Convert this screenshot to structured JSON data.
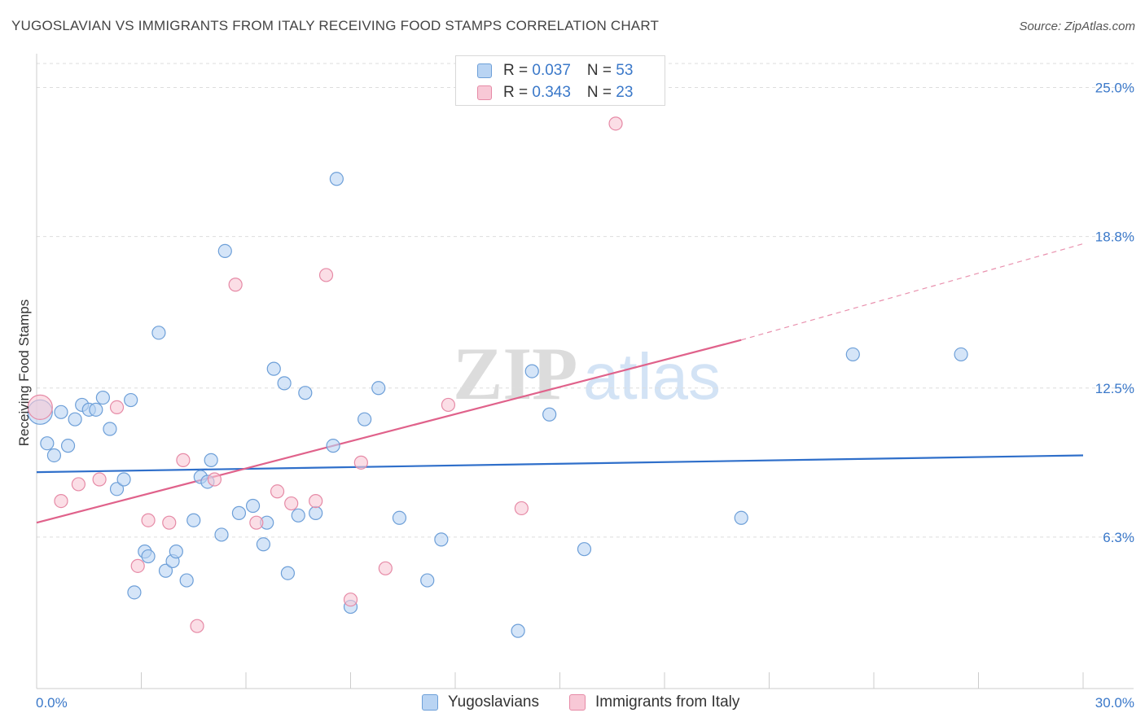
{
  "title": "YUGOSLAVIAN VS IMMIGRANTS FROM ITALY RECEIVING FOOD STAMPS CORRELATION CHART",
  "source": "Source: ZipAtlas.com",
  "watermark": {
    "part1": "ZIP",
    "part2": "atlas"
  },
  "legend": {
    "rows": [
      {
        "r_label": "R = ",
        "r_value": "0.037",
        "n_label": "N = ",
        "n_value": "53"
      },
      {
        "r_label": "R = ",
        "r_value": "0.343",
        "n_label": "N = ",
        "n_value": "23"
      }
    ]
  },
  "colors": {
    "blue_fill": "#b9d4f3",
    "blue_stroke": "#6d9fd8",
    "blue_line": "#2f6fca",
    "pink_fill": "#f8c8d6",
    "pink_stroke": "#e68aa6",
    "pink_line": "#e0628b",
    "tick_label": "#3a78c9",
    "grid": "#dddddd"
  },
  "chart_data": {
    "type": "scatter",
    "title": "YUGOSLAVIAN VS IMMIGRANTS FROM ITALY RECEIVING FOOD STAMPS CORRELATION CHART",
    "xlabel": "",
    "ylabel": "Receiving Food Stamps",
    "xlim": [
      0,
      30
    ],
    "ylim": [
      0,
      26.0
    ],
    "x_tick_labels": [
      "0.0%",
      "30.0%"
    ],
    "y_ticks": [
      6.3,
      12.5,
      18.8,
      25.0
    ],
    "y_tick_labels": [
      "6.3%",
      "12.5%",
      "18.8%",
      "25.0%"
    ],
    "grid": true,
    "series": [
      {
        "name": "Yugoslavians",
        "points": [
          [
            0.1,
            11.5
          ],
          [
            0.3,
            10.2
          ],
          [
            0.5,
            9.7
          ],
          [
            0.7,
            11.5
          ],
          [
            0.9,
            10.1
          ],
          [
            1.1,
            11.2
          ],
          [
            1.3,
            11.8
          ],
          [
            1.5,
            11.6
          ],
          [
            1.7,
            11.6
          ],
          [
            1.9,
            12.1
          ],
          [
            2.1,
            10.8
          ],
          [
            2.3,
            8.3
          ],
          [
            2.5,
            8.7
          ],
          [
            2.7,
            12.0
          ],
          [
            2.8,
            4.0
          ],
          [
            3.1,
            5.7
          ],
          [
            3.2,
            5.5
          ],
          [
            3.5,
            14.8
          ],
          [
            3.7,
            4.9
          ],
          [
            3.9,
            5.3
          ],
          [
            4.0,
            5.7
          ],
          [
            4.3,
            4.5
          ],
          [
            4.5,
            7.0
          ],
          [
            4.7,
            8.8
          ],
          [
            4.9,
            8.6
          ],
          [
            5.0,
            9.5
          ],
          [
            5.3,
            6.4
          ],
          [
            5.4,
            18.2
          ],
          [
            5.8,
            7.3
          ],
          [
            6.2,
            7.6
          ],
          [
            6.5,
            6.0
          ],
          [
            6.6,
            6.9
          ],
          [
            6.8,
            13.3
          ],
          [
            7.1,
            12.7
          ],
          [
            7.2,
            4.8
          ],
          [
            7.5,
            7.2
          ],
          [
            7.7,
            12.3
          ],
          [
            8.0,
            7.3
          ],
          [
            8.5,
            10.1
          ],
          [
            8.6,
            21.2
          ],
          [
            9.0,
            3.4
          ],
          [
            9.4,
            11.2
          ],
          [
            9.8,
            12.5
          ],
          [
            10.4,
            7.1
          ],
          [
            11.2,
            4.5
          ],
          [
            11.6,
            6.2
          ],
          [
            13.8,
            2.4
          ],
          [
            14.2,
            13.2
          ],
          [
            14.7,
            11.4
          ],
          [
            15.7,
            5.8
          ],
          [
            20.2,
            7.1
          ],
          [
            23.4,
            13.9
          ],
          [
            26.5,
            13.9
          ]
        ]
      },
      {
        "name": "Immigrants from Italy",
        "points": [
          [
            0.1,
            11.7
          ],
          [
            0.7,
            7.8
          ],
          [
            1.2,
            8.5
          ],
          [
            1.8,
            8.7
          ],
          [
            2.3,
            11.7
          ],
          [
            2.9,
            5.1
          ],
          [
            3.2,
            7.0
          ],
          [
            3.8,
            6.9
          ],
          [
            4.2,
            9.5
          ],
          [
            4.6,
            2.6
          ],
          [
            5.1,
            8.7
          ],
          [
            5.7,
            16.8
          ],
          [
            6.3,
            6.9
          ],
          [
            6.9,
            8.2
          ],
          [
            7.3,
            7.7
          ],
          [
            8.0,
            7.8
          ],
          [
            8.3,
            17.2
          ],
          [
            9.0,
            3.7
          ],
          [
            9.3,
            9.4
          ],
          [
            10.0,
            5.0
          ],
          [
            11.8,
            11.8
          ],
          [
            13.9,
            7.5
          ],
          [
            16.6,
            23.5
          ]
        ]
      }
    ],
    "trend_lines": [
      {
        "series": "Yugoslavians",
        "x": [
          0,
          30
        ],
        "y": [
          9.0,
          9.7
        ]
      },
      {
        "series": "Immigrants from Italy",
        "solid_x": [
          0,
          20.2
        ],
        "solid_y": [
          6.9,
          14.5
        ],
        "dashed_x": [
          20.2,
          30
        ],
        "dashed_y": [
          14.5,
          18.5
        ]
      }
    ]
  },
  "bottom_legend": [
    {
      "label": "Yugoslavians"
    },
    {
      "label": "Immigrants from Italy"
    }
  ]
}
